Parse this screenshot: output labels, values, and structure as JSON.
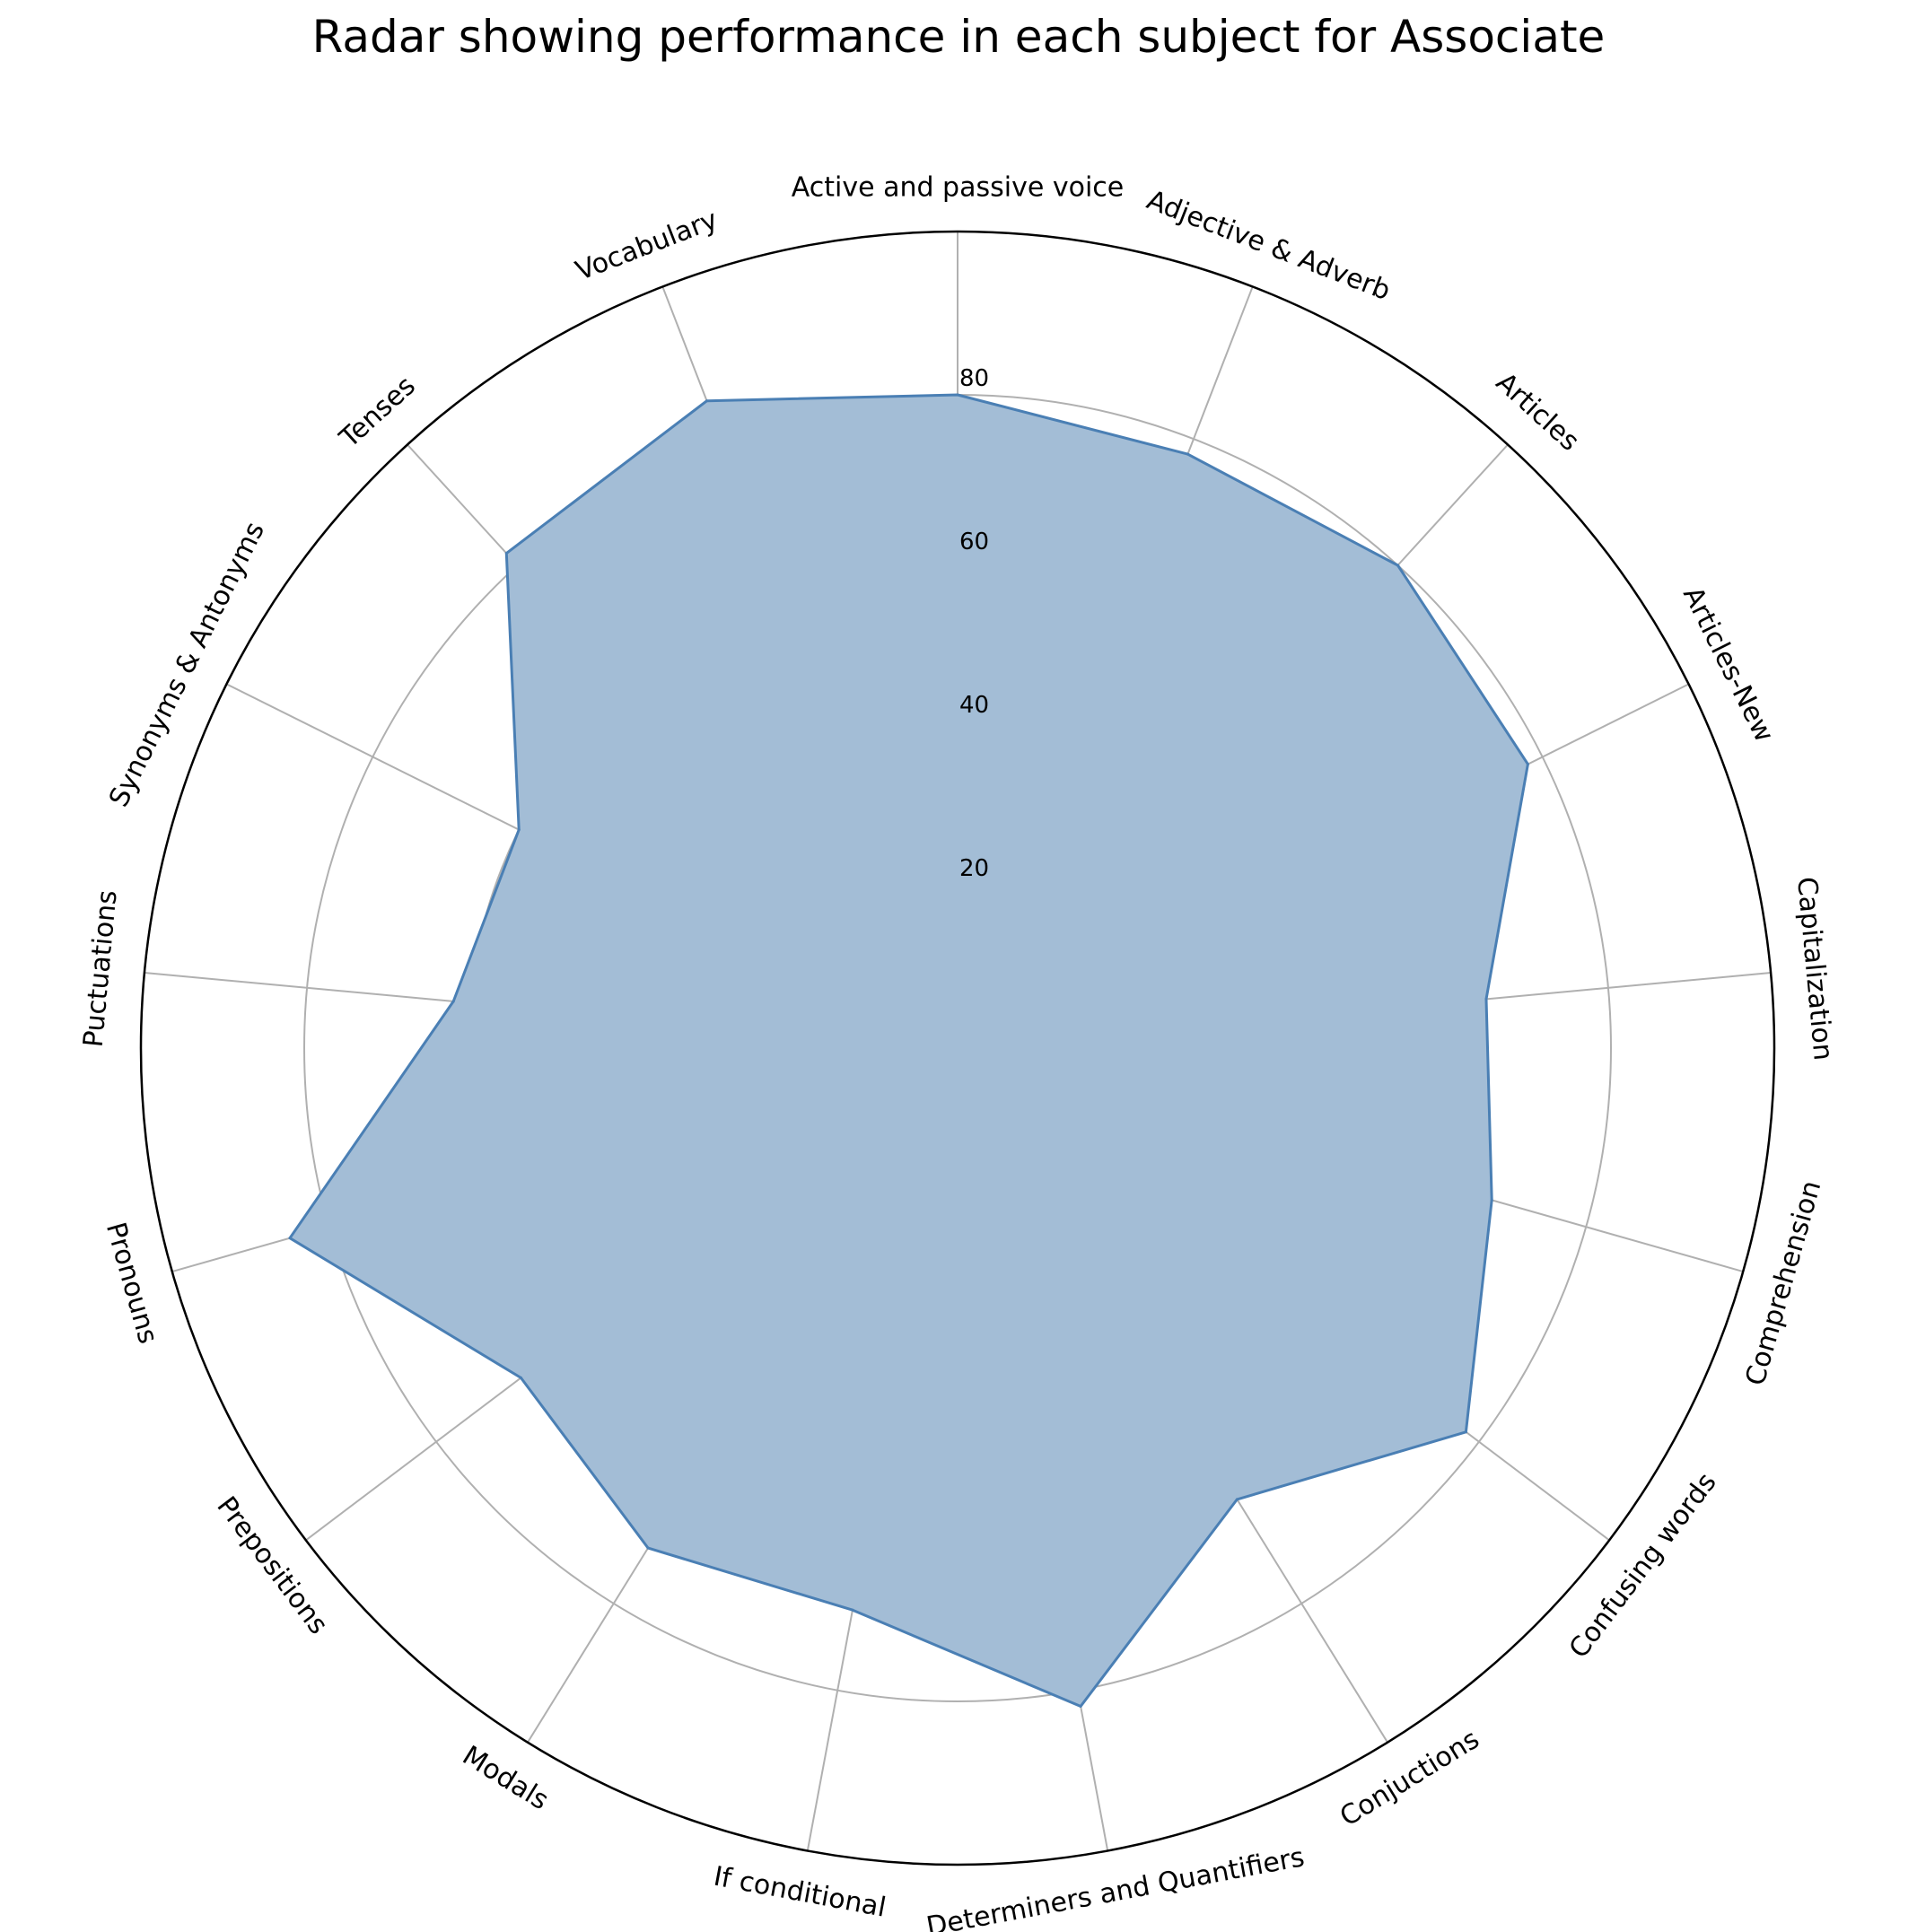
{
  "chart_data": {
    "type": "radar",
    "title": "Radar showing performance in each subject for Associate",
    "categories": [
      "Active and passive voice",
      "Adjective & Adverb",
      "Articles",
      "Articles-New",
      "Capitalization",
      "Comprehension",
      "Confusing words",
      "Conjuctions",
      "Determiners and Quantifiers",
      "If conditional",
      "Modals",
      "Prepositions",
      "Pronouns",
      "Puctuations",
      "Synonyms & Antonyms",
      "Tenses",
      "Vocabulary"
    ],
    "values": [
      80,
      78,
      80,
      78,
      65,
      68,
      78,
      65,
      82,
      70,
      72,
      67,
      85,
      62,
      60,
      82,
      85
    ],
    "rlim": [
      0,
      100
    ],
    "rticks": [
      20,
      40,
      60,
      80
    ],
    "grid": true,
    "colors": {
      "fill": "#a3bdd6",
      "line": "#4a7fb4",
      "grid": "#b0b0b0",
      "frame": "#000000"
    }
  }
}
